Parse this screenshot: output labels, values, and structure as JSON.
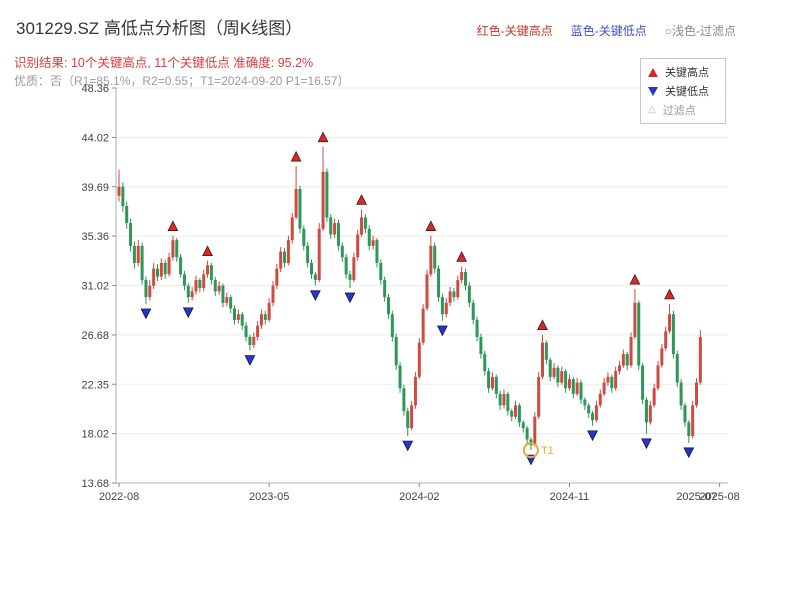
{
  "header": {
    "title": "301229.SZ 高低点分析图（周K线图）",
    "top_legend": [
      {
        "label": "红色-关键高点",
        "color": "#c0392b"
      },
      {
        "label": "蓝色-关键低点",
        "color": "#4150c0"
      },
      {
        "label": "○浅色-过滤点",
        "color": "#8a8a8a"
      }
    ],
    "result_line": "识别结果: 10个关键高点, 11个关键低点  准确度: 95.2%",
    "quality_line": "优质：否（R1=85.1%，R2=0.55；T1=2024-09-20 P1=16.57）"
  },
  "legend_box": {
    "items": [
      {
        "label": "关键高点",
        "symbol": "triangle-up",
        "color": "#d42a2a"
      },
      {
        "label": "关键低点",
        "symbol": "triangle-down",
        "color": "#2336c9"
      },
      {
        "label": "过滤点",
        "symbol": "triangle-outline",
        "color": "#b5b5b5"
      }
    ]
  },
  "chart_data": {
    "type": "candlestick",
    "title": "301229.SZ 高低点分析图（周K线图）",
    "ylim": [
      13.68,
      48.36
    ],
    "y_ticks": [
      48.36,
      44.02,
      39.69,
      35.36,
      31.02,
      26.68,
      22.35,
      18.02,
      13.68
    ],
    "x_tick_labels": [
      "2022-08",
      "2023-05",
      "2024-02",
      "2024-11",
      "2025-08"
    ],
    "x_tick_indices": [
      0,
      39,
      78,
      117,
      156
    ],
    "extra_x_tick": {
      "label": "2025-07",
      "index": 150
    },
    "grid": true,
    "up_color": "#cf4a3f",
    "down_color": "#2e9658",
    "high_marker_color": "#d42a2a",
    "low_marker_color": "#2336c9",
    "candles": [
      [
        38.9,
        41.2,
        38.4,
        39.7
      ],
      [
        39.7,
        40.1,
        37.5,
        38.0
      ],
      [
        38.0,
        38.4,
        36.0,
        36.5
      ],
      [
        36.5,
        36.9,
        34.0,
        34.5
      ],
      [
        34.5,
        34.9,
        32.5,
        33.0
      ],
      [
        33.0,
        35.0,
        32.7,
        34.5
      ],
      [
        34.5,
        34.8,
        31.1,
        31.5
      ],
      [
        31.5,
        31.8,
        29.4,
        30.0
      ],
      [
        30.0,
        31.5,
        29.7,
        31.0
      ],
      [
        31.0,
        33.0,
        30.7,
        32.5
      ],
      [
        32.5,
        32.9,
        31.4,
        31.8
      ],
      [
        31.8,
        33.4,
        31.5,
        33.0
      ],
      [
        33.0,
        33.3,
        31.6,
        32.0
      ],
      [
        32.0,
        33.9,
        31.8,
        33.5
      ],
      [
        33.5,
        35.4,
        33.2,
        35.0
      ],
      [
        35.0,
        35.2,
        33.1,
        33.5
      ],
      [
        33.5,
        33.8,
        31.7,
        32.0
      ],
      [
        32.0,
        32.3,
        30.6,
        31.0
      ],
      [
        31.0,
        31.2,
        29.5,
        30.0
      ],
      [
        30.0,
        30.9,
        29.7,
        30.5
      ],
      [
        30.5,
        31.9,
        30.2,
        31.5
      ],
      [
        31.5,
        31.7,
        30.4,
        30.8
      ],
      [
        30.8,
        32.4,
        30.5,
        32.0
      ],
      [
        32.0,
        33.2,
        31.7,
        32.8
      ],
      [
        32.8,
        33.0,
        31.1,
        31.5
      ],
      [
        31.5,
        31.8,
        30.1,
        30.5
      ],
      [
        30.5,
        31.4,
        30.2,
        31.0
      ],
      [
        31.0,
        31.2,
        29.1,
        29.5
      ],
      [
        29.5,
        30.4,
        29.2,
        30.0
      ],
      [
        30.0,
        30.2,
        28.6,
        29.0
      ],
      [
        29.0,
        29.3,
        27.6,
        28.0
      ],
      [
        28.0,
        28.9,
        27.7,
        28.5
      ],
      [
        28.5,
        28.7,
        27.1,
        27.5
      ],
      [
        27.5,
        27.8,
        26.1,
        26.5
      ],
      [
        26.5,
        26.7,
        25.3,
        25.8
      ],
      [
        25.8,
        26.9,
        25.5,
        26.5
      ],
      [
        26.5,
        27.9,
        26.2,
        27.5
      ],
      [
        27.5,
        28.9,
        27.2,
        28.5
      ],
      [
        28.5,
        28.8,
        27.6,
        28.0
      ],
      [
        28.0,
        29.9,
        27.8,
        29.5
      ],
      [
        29.5,
        31.4,
        29.2,
        31.0
      ],
      [
        31.0,
        32.9,
        30.7,
        32.5
      ],
      [
        32.5,
        34.4,
        32.2,
        34.0
      ],
      [
        34.0,
        34.3,
        32.6,
        33.0
      ],
      [
        33.0,
        35.4,
        32.8,
        35.0
      ],
      [
        35.0,
        37.4,
        34.7,
        37.0
      ],
      [
        37.0,
        41.5,
        36.8,
        39.5
      ],
      [
        39.5,
        39.8,
        35.6,
        36.0
      ],
      [
        36.0,
        36.3,
        34.1,
        34.5
      ],
      [
        34.5,
        34.8,
        32.6,
        33.0
      ],
      [
        33.0,
        33.3,
        31.6,
        32.0
      ],
      [
        32.0,
        32.2,
        31.0,
        31.5
      ],
      [
        31.5,
        36.5,
        31.3,
        36.0
      ],
      [
        36.0,
        43.2,
        35.8,
        41.0
      ],
      [
        41.0,
        41.3,
        36.6,
        37.0
      ],
      [
        37.0,
        37.3,
        35.1,
        35.5
      ],
      [
        35.5,
        36.9,
        35.2,
        36.5
      ],
      [
        36.5,
        36.8,
        34.1,
        34.5
      ],
      [
        34.5,
        34.8,
        33.1,
        33.5
      ],
      [
        33.5,
        33.8,
        31.6,
        32.0
      ],
      [
        32.0,
        32.3,
        30.8,
        31.5
      ],
      [
        31.5,
        33.9,
        31.3,
        33.5
      ],
      [
        33.5,
        35.9,
        33.2,
        35.5
      ],
      [
        35.5,
        37.7,
        35.3,
        37.0
      ],
      [
        37.0,
        37.3,
        35.6,
        36.0
      ],
      [
        36.0,
        36.3,
        34.1,
        34.5
      ],
      [
        34.5,
        35.4,
        34.2,
        35.0
      ],
      [
        35.0,
        35.2,
        32.6,
        33.0
      ],
      [
        33.0,
        33.3,
        31.1,
        31.5
      ],
      [
        31.5,
        31.8,
        29.6,
        30.0
      ],
      [
        30.0,
        30.3,
        28.1,
        28.5
      ],
      [
        28.5,
        28.8,
        26.1,
        26.5
      ],
      [
        26.5,
        26.8,
        23.6,
        24.0
      ],
      [
        24.0,
        24.3,
        21.6,
        22.0
      ],
      [
        22.0,
        22.3,
        19.6,
        20.0
      ],
      [
        20.0,
        20.3,
        17.8,
        18.5
      ],
      [
        18.5,
        20.9,
        18.3,
        20.5
      ],
      [
        20.5,
        23.4,
        20.2,
        23.0
      ],
      [
        23.0,
        26.4,
        22.8,
        26.0
      ],
      [
        26.0,
        29.4,
        25.8,
        29.0
      ],
      [
        29.0,
        32.4,
        28.8,
        32.0
      ],
      [
        32.0,
        35.4,
        31.8,
        34.5
      ],
      [
        34.5,
        34.8,
        32.1,
        32.5
      ],
      [
        32.5,
        32.8,
        29.6,
        30.0
      ],
      [
        30.0,
        30.3,
        27.9,
        28.5
      ],
      [
        28.5,
        29.9,
        28.2,
        29.5
      ],
      [
        29.5,
        30.9,
        29.2,
        30.5
      ],
      [
        30.5,
        30.8,
        29.6,
        30.0
      ],
      [
        30.0,
        31.9,
        29.8,
        31.5
      ],
      [
        31.5,
        32.7,
        31.2,
        32.2
      ],
      [
        32.2,
        32.5,
        30.6,
        31.0
      ],
      [
        31.0,
        31.3,
        29.1,
        29.5
      ],
      [
        29.5,
        29.8,
        27.6,
        28.0
      ],
      [
        28.0,
        28.3,
        26.1,
        26.5
      ],
      [
        26.5,
        26.8,
        24.6,
        25.0
      ],
      [
        25.0,
        25.3,
        23.1,
        23.5
      ],
      [
        23.5,
        23.8,
        21.6,
        22.0
      ],
      [
        22.0,
        23.4,
        21.8,
        23.0
      ],
      [
        23.0,
        23.2,
        21.1,
        21.5
      ],
      [
        21.5,
        21.8,
        20.1,
        20.5
      ],
      [
        20.5,
        21.9,
        20.2,
        21.5
      ],
      [
        21.5,
        21.7,
        19.6,
        20.0
      ],
      [
        20.0,
        20.2,
        19.1,
        19.5
      ],
      [
        19.5,
        20.9,
        19.3,
        20.5
      ],
      [
        20.5,
        20.7,
        18.6,
        19.0
      ],
      [
        19.0,
        19.2,
        18.1,
        18.5
      ],
      [
        18.5,
        18.7,
        17.1,
        17.5
      ],
      [
        17.5,
        17.7,
        16.57,
        17.0
      ],
      [
        17.0,
        19.9,
        16.9,
        19.5
      ],
      [
        19.5,
        23.4,
        19.3,
        23.0
      ],
      [
        23.0,
        26.7,
        22.8,
        26.0
      ],
      [
        26.0,
        26.2,
        24.1,
        24.5
      ],
      [
        24.5,
        24.7,
        22.6,
        23.0
      ],
      [
        23.0,
        24.2,
        22.8,
        23.8
      ],
      [
        23.8,
        24.0,
        22.1,
        22.5
      ],
      [
        22.5,
        23.9,
        22.3,
        23.5
      ],
      [
        23.5,
        23.7,
        21.6,
        22.0
      ],
      [
        22.0,
        23.2,
        21.8,
        22.8
      ],
      [
        22.8,
        23.0,
        21.1,
        21.5
      ],
      [
        21.5,
        22.9,
        21.3,
        22.5
      ],
      [
        22.5,
        22.7,
        20.6,
        21.0
      ],
      [
        21.0,
        21.2,
        20.1,
        20.5
      ],
      [
        20.5,
        20.7,
        19.4,
        19.8
      ],
      [
        19.8,
        20.0,
        18.7,
        19.2
      ],
      [
        19.2,
        20.9,
        19.0,
        20.5
      ],
      [
        20.5,
        21.9,
        20.3,
        21.5
      ],
      [
        21.5,
        22.9,
        21.3,
        22.5
      ],
      [
        22.5,
        23.4,
        22.2,
        23.0
      ],
      [
        23.0,
        23.2,
        21.6,
        22.0
      ],
      [
        22.0,
        23.9,
        21.8,
        23.5
      ],
      [
        23.5,
        24.4,
        23.2,
        24.0
      ],
      [
        24.0,
        25.4,
        23.8,
        25.0
      ],
      [
        25.0,
        25.2,
        23.6,
        24.0
      ],
      [
        24.0,
        26.9,
        23.8,
        26.5
      ],
      [
        26.5,
        30.7,
        26.3,
        29.5
      ],
      [
        29.5,
        29.7,
        23.6,
        24.0
      ],
      [
        24.0,
        24.2,
        20.6,
        21.0
      ],
      [
        21.0,
        21.2,
        18.0,
        19.0
      ],
      [
        19.0,
        20.9,
        18.8,
        20.5
      ],
      [
        20.5,
        22.4,
        20.3,
        22.0
      ],
      [
        22.0,
        24.4,
        21.8,
        24.0
      ],
      [
        24.0,
        25.9,
        23.8,
        25.5
      ],
      [
        25.5,
        27.4,
        25.3,
        27.0
      ],
      [
        27.0,
        29.4,
        26.8,
        28.5
      ],
      [
        28.5,
        28.8,
        24.6,
        25.0
      ],
      [
        25.0,
        25.3,
        22.1,
        22.5
      ],
      [
        22.5,
        22.8,
        20.1,
        20.5
      ],
      [
        20.5,
        20.7,
        18.6,
        19.0
      ],
      [
        19.0,
        19.2,
        17.2,
        17.8
      ],
      [
        17.8,
        20.9,
        17.6,
        20.5
      ],
      [
        20.5,
        22.9,
        20.3,
        22.5
      ],
      [
        22.5,
        27.1,
        22.3,
        26.5
      ]
    ],
    "key_highs": [
      [
        14,
        35.4
      ],
      [
        23,
        33.2
      ],
      [
        46,
        41.5
      ],
      [
        53,
        43.2
      ],
      [
        63,
        37.7
      ],
      [
        81,
        35.4
      ],
      [
        89,
        32.7
      ],
      [
        110,
        26.7
      ],
      [
        134,
        30.7
      ],
      [
        143,
        29.4
      ]
    ],
    "key_lows": [
      [
        7,
        29.4
      ],
      [
        18,
        29.5
      ],
      [
        34,
        25.3
      ],
      [
        51,
        31.0
      ],
      [
        60,
        30.8
      ],
      [
        75,
        17.8
      ],
      [
        84,
        27.9
      ],
      [
        107,
        16.57
      ],
      [
        123,
        18.7
      ],
      [
        137,
        18.0
      ],
      [
        148,
        17.2
      ]
    ],
    "t1_marker": {
      "index": 107,
      "price": 16.57,
      "label": "T1",
      "color": "#eba83a"
    }
  }
}
